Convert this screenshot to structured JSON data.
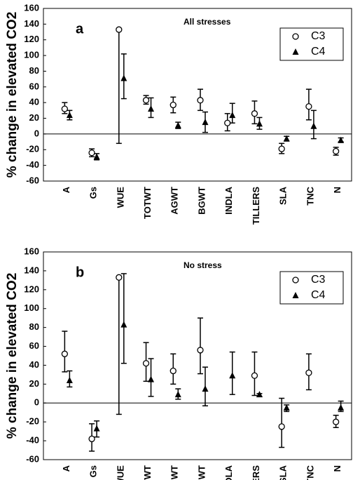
{
  "chart_data": [
    {
      "type": "errorbar",
      "label": "a",
      "annotation": "All stresses",
      "y_label": "% change in elevated CO2",
      "categories": [
        "A",
        "Gs",
        "WUE",
        "TOTWT",
        "AGWT",
        "BGWT",
        "INDLA",
        "TILLERS",
        "SLA",
        "TNC",
        "N"
      ],
      "ylim": [
        -60,
        160
      ],
      "yticks": [
        -60,
        -40,
        -20,
        0,
        20,
        40,
        60,
        80,
        100,
        120,
        140,
        160
      ],
      "legend": "upper right",
      "series": [
        {
          "name": "C3",
          "color": "#000000",
          "marker": "circle",
          "values": [
            32,
            -24,
            133,
            43,
            37,
            43,
            14,
            26,
            -19,
            35,
            -22
          ],
          "low": [
            26,
            -29,
            -12,
            38,
            27,
            30,
            4,
            13,
            -25,
            18,
            -27
          ],
          "high": [
            40,
            -19,
            133,
            49,
            47,
            57,
            26,
            42,
            -12,
            57,
            -17
          ]
        },
        {
          "name": "C4",
          "color": "#000000",
          "marker": "triangle",
          "values": [
            24,
            -29,
            71,
            32,
            11,
            15,
            24,
            13,
            -6,
            10,
            -8
          ],
          "low": [
            18,
            -33,
            45,
            21,
            7,
            2,
            14,
            6,
            -9,
            -6,
            -10
          ],
          "high": [
            30,
            -25,
            102,
            46,
            15,
            28,
            39,
            21,
            -3,
            30,
            -5
          ]
        }
      ]
    },
    {
      "type": "errorbar",
      "label": "b",
      "annotation": "No stress",
      "y_label": "% change in elevated CO2",
      "categories": [
        "A",
        "Gs",
        "WUE",
        "TOTWT",
        "AGWT",
        "BGWT",
        "INDLA",
        "TILLERS",
        "SLA",
        "TNC",
        "N"
      ],
      "ylim": [
        -60,
        160
      ],
      "yticks": [
        -60,
        -40,
        -20,
        0,
        20,
        40,
        60,
        80,
        100,
        120,
        140,
        160
      ],
      "legend": "upper right",
      "series": [
        {
          "name": "C3",
          "color": "#000000",
          "marker": "circle",
          "values": [
            52,
            -38,
            133,
            42,
            34,
            56,
            null,
            29,
            -25,
            32,
            -20
          ],
          "low": [
            33,
            -51,
            -12,
            23,
            20,
            31,
            null,
            8,
            -47,
            14,
            -26
          ],
          "high": [
            76,
            -22,
            133,
            64,
            52,
            90,
            null,
            54,
            5,
            52,
            -13
          ]
        },
        {
          "name": "C4",
          "color": "#000000",
          "marker": "triangle",
          "values": [
            24,
            -27,
            83,
            25,
            9,
            15,
            29,
            9,
            -5,
            null,
            -5
          ],
          "low": [
            17,
            -36,
            42,
            7,
            4,
            -3,
            9,
            7,
            -9,
            null,
            -9
          ],
          "high": [
            34,
            -19,
            137,
            47,
            15,
            38,
            54,
            10,
            -2,
            null,
            2
          ]
        }
      ]
    }
  ]
}
